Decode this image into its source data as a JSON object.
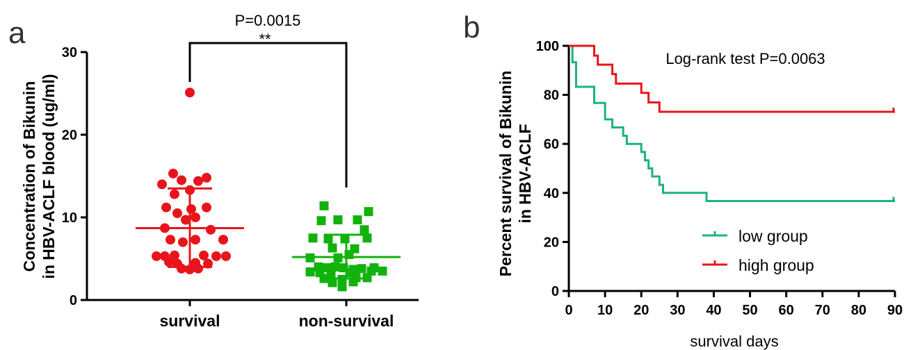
{
  "panels": {
    "a_label": "a",
    "b_label": "b"
  },
  "colors": {
    "survival": "#e8141c",
    "non_survival": "#12b20c",
    "low_group": "#1db37a",
    "high_group": "#e8141c"
  },
  "chart_data": [
    {
      "type": "scatter",
      "panel": "a",
      "ylabel_line1": "Concentration of Bikunin",
      "ylabel_line2": "in HBV-ACLF blood (ug/ml)",
      "ylim": [
        0,
        30
      ],
      "yticks": [
        0,
        10,
        20,
        30
      ],
      "categories": [
        "survival",
        "non-survival"
      ],
      "annotation_p": "P=0.0015",
      "annotation_sig": "**",
      "series": [
        {
          "category": "survival",
          "marker": "circle",
          "mean": 8.7,
          "sd_upper": 13.5,
          "sd_lower": 4.0,
          "points": [
            [
              0,
              25.1
            ],
            [
              -0.6,
              15.3
            ],
            [
              -0.3,
              14.5
            ],
            [
              0.6,
              14.8
            ],
            [
              0.3,
              14.4
            ],
            [
              -1.0,
              14.0
            ],
            [
              0.0,
              13.3
            ],
            [
              -0.55,
              12.8
            ],
            [
              -0.85,
              11.2
            ],
            [
              -0.45,
              10.5
            ],
            [
              0.05,
              11.0
            ],
            [
              0.6,
              11.2
            ],
            [
              -0.15,
              9.7
            ],
            [
              0.2,
              10.0
            ],
            [
              -0.9,
              8.7
            ],
            [
              0.75,
              8.5
            ],
            [
              -0.7,
              7.3
            ],
            [
              -0.25,
              7.0
            ],
            [
              0.2,
              7.3
            ],
            [
              1.2,
              7.3
            ],
            [
              -1.2,
              5.3
            ],
            [
              -0.9,
              5.3
            ],
            [
              -0.55,
              5.4
            ],
            [
              0.5,
              5.4
            ],
            [
              0.95,
              5.3
            ],
            [
              1.3,
              5.3
            ],
            [
              -0.75,
              4.6
            ],
            [
              -0.45,
              4.4
            ],
            [
              0.2,
              4.5
            ],
            [
              0.65,
              4.4
            ],
            [
              -0.3,
              3.8
            ],
            [
              0.0,
              3.7
            ],
            [
              0.3,
              3.8
            ]
          ]
        },
        {
          "category": "non-survival",
          "marker": "square",
          "mean": 5.2,
          "sd_upper": 7.9,
          "sd_lower": 2.6,
          "points": [
            [
              -0.8,
              11.4
            ],
            [
              0.8,
              10.7
            ],
            [
              -0.9,
              9.6
            ],
            [
              -0.3,
              9.7
            ],
            [
              0.4,
              9.7
            ],
            [
              0.65,
              8.5
            ],
            [
              -1.2,
              7.5
            ],
            [
              -0.65,
              7.4
            ],
            [
              -0.05,
              7.4
            ],
            [
              0.75,
              7.5
            ],
            [
              -0.5,
              6.3
            ],
            [
              0.3,
              6.2
            ],
            [
              0.1,
              5.5
            ],
            [
              -0.3,
              5.1
            ],
            [
              -1.3,
              5.1
            ],
            [
              -1.0,
              4.0
            ],
            [
              -0.7,
              3.9
            ],
            [
              -0.4,
              4.0
            ],
            [
              -0.1,
              3.9
            ],
            [
              0.25,
              3.7
            ],
            [
              0.55,
              3.8
            ],
            [
              1.0,
              3.9
            ],
            [
              -1.3,
              3.4
            ],
            [
              -0.95,
              3.3
            ],
            [
              -0.55,
              3.2
            ],
            [
              0.9,
              3.5
            ],
            [
              1.3,
              3.5
            ],
            [
              0.15,
              3.3
            ],
            [
              -0.8,
              2.6
            ],
            [
              -0.15,
              2.5
            ],
            [
              0.35,
              2.7
            ],
            [
              0.75,
              2.7
            ],
            [
              0.25,
              2.2
            ],
            [
              -0.5,
              2.1
            ],
            [
              -0.15,
              1.6
            ]
          ]
        }
      ]
    },
    {
      "type": "line",
      "panel": "b",
      "ylabel_line1": "Percent survival of Bikunin",
      "ylabel_line2": "in HBV-ACLF",
      "xlabel": "survival days",
      "xlim": [
        0,
        90
      ],
      "ylim": [
        0,
        100
      ],
      "xticks": [
        0,
        10,
        20,
        30,
        40,
        50,
        60,
        70,
        80,
        90
      ],
      "yticks": [
        0,
        20,
        40,
        60,
        80,
        100
      ],
      "annotation": "Log-rank test  P=0.0063",
      "legend_position": "bottom-center",
      "series": [
        {
          "name": "low  group",
          "color_key": "low_group",
          "steps": [
            [
              0,
              100
            ],
            [
              1,
              93.3
            ],
            [
              2,
              83.3
            ],
            [
              7,
              76.7
            ],
            [
              10,
              70.0
            ],
            [
              12,
              66.7
            ],
            [
              15,
              63.3
            ],
            [
              16,
              60.0
            ],
            [
              20,
              56.7
            ],
            [
              21,
              53.3
            ],
            [
              22,
              50.0
            ],
            [
              23,
              46.7
            ],
            [
              25,
              43.3
            ],
            [
              26,
              40.0
            ],
            [
              38,
              36.7
            ],
            [
              90,
              36.7
            ]
          ]
        },
        {
          "name": "high group",
          "color_key": "high_group",
          "steps": [
            [
              0,
              100
            ],
            [
              7,
              96.0
            ],
            [
              8,
              92.3
            ],
            [
              12,
              88.5
            ],
            [
              13,
              84.6
            ],
            [
              20,
              80.8
            ],
            [
              22,
              76.9
            ],
            [
              25,
              73.1
            ],
            [
              90,
              73.1
            ]
          ]
        }
      ]
    }
  ]
}
